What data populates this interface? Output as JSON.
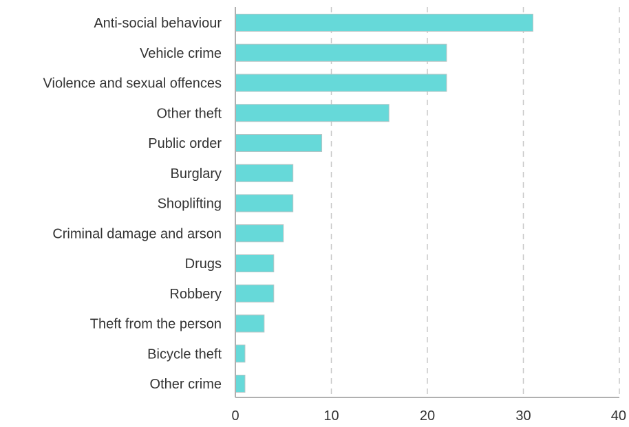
{
  "chart_data": {
    "type": "bar",
    "orientation": "horizontal",
    "title": "",
    "xlabel": "",
    "ylabel": "",
    "categories": [
      "Anti-social behaviour",
      "Vehicle crime",
      "Violence and sexual offences",
      "Other theft",
      "Public order",
      "Burglary",
      "Shoplifting",
      "Criminal damage and arson",
      "Drugs",
      "Robbery",
      "Theft from the person",
      "Bicycle theft",
      "Other crime"
    ],
    "values": [
      31,
      22,
      22,
      16,
      9,
      6,
      6,
      5,
      4,
      4,
      3,
      1,
      1
    ],
    "xlim": [
      0,
      40
    ],
    "xticks": [
      0,
      10,
      20,
      30,
      40
    ],
    "grid": "vertical-dashed",
    "legend": "none",
    "bar_color": "#66d9d9"
  }
}
